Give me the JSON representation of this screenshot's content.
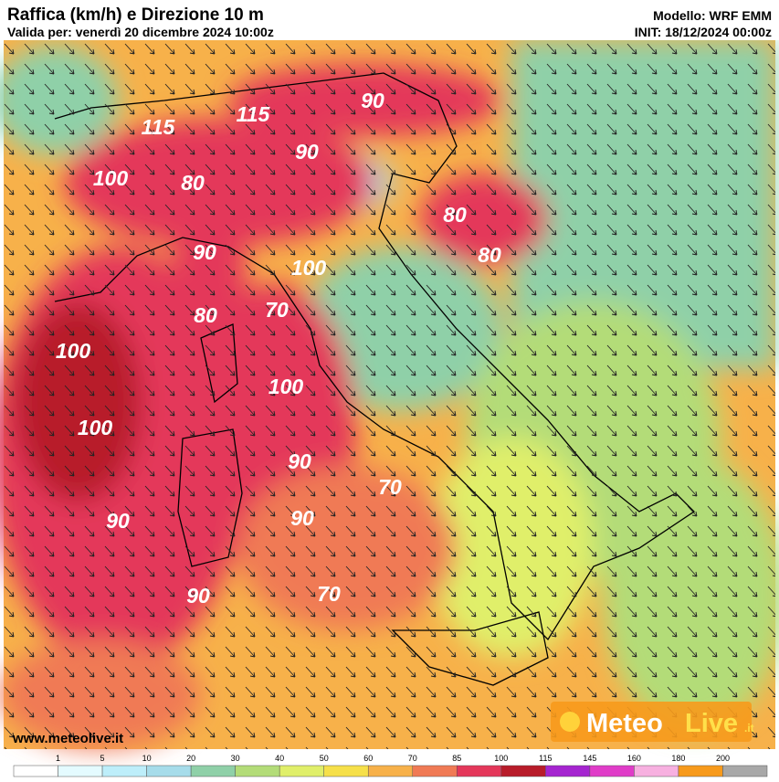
{
  "header": {
    "title": "Raffica (km/h) e Direzione 10 m",
    "subtitle": "Valida per: venerdì 20 dicembre 2024 10:00z",
    "model": "Modello: WRF EMM",
    "init": "INIT: 18/12/2024 00:00z"
  },
  "map": {
    "labels": [
      115,
      115,
      90,
      90,
      100,
      80,
      80,
      80,
      90,
      100,
      70,
      80,
      100,
      100,
      100,
      90,
      70,
      90,
      90,
      90,
      70
    ]
  },
  "watermark": "www.meteolive.it",
  "logo": {
    "part1": "Meteo",
    "part2": "Live",
    "suffix": ".it"
  },
  "scale": {
    "ticks": [
      1,
      5,
      10,
      20,
      30,
      40,
      50,
      60,
      70,
      85,
      100,
      115,
      145,
      160,
      180,
      200
    ],
    "colors": [
      "#ffffff",
      "#e4fbff",
      "#bdeefa",
      "#a6dcea",
      "#8fd0a8",
      "#b3dc78",
      "#e0ef6a",
      "#f6e04a",
      "#f7b14a",
      "#f07a55",
      "#e4375a",
      "#b81c2a",
      "#a525d0",
      "#e03cc8",
      "#f7b0e0",
      "#f79a1c",
      "#a8a8a8"
    ]
  }
}
